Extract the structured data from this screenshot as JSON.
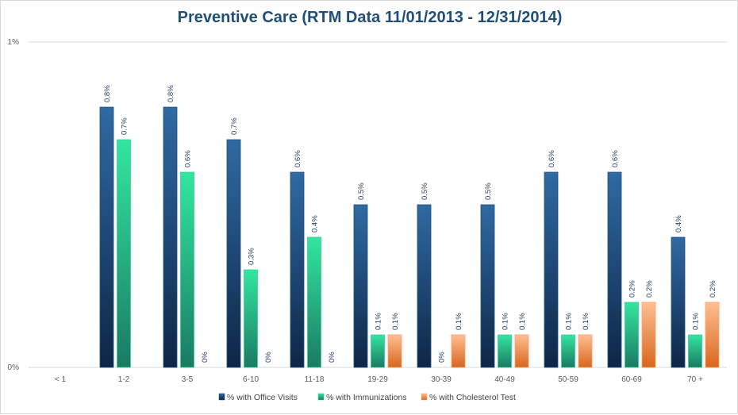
{
  "chart_data": {
    "type": "bar",
    "title": "Preventive Care (RTM Data 11/01/2013 - 12/31/2014)",
    "categories": [
      "< 1",
      "1-2",
      "3-5",
      "6-10",
      "11-18",
      "19-29",
      "30-39",
      "40-49",
      "50-59",
      "60-69",
      "70 +"
    ],
    "y_ticks": [
      "0%",
      "1%"
    ],
    "ylim": [
      0,
      1
    ],
    "grid": true,
    "legend_position": "bottom",
    "series": [
      {
        "name": "% with Office Visits",
        "color": "#1f4e79",
        "values": [
          null,
          0.8,
          0.8,
          0.7,
          0.6,
          0.5,
          0.5,
          0.5,
          0.6,
          0.6,
          0.4
        ],
        "labels": [
          "",
          "0.8%",
          "0.8%",
          "0.7%",
          "0.6%",
          "0.5%",
          "0.5%",
          "0.5%",
          "0.6%",
          "0.6%",
          "0.4%"
        ]
      },
      {
        "name": "% with Immunizations",
        "color": "#2ed48f",
        "values": [
          null,
          0.7,
          0.6,
          0.3,
          0.4,
          0.1,
          0,
          0.1,
          0.1,
          0.2,
          0.1
        ],
        "labels": [
          "",
          "0.7%",
          "0.6%",
          "0.3%",
          "0.4%",
          "0.1%",
          "0%",
          "0.1%",
          "0.1%",
          "0.2%",
          "0.1%"
        ]
      },
      {
        "name": "% with Cholesterol Test",
        "color": "#f4a36c",
        "values": [
          null,
          null,
          0,
          0,
          0,
          0.1,
          0.1,
          0.1,
          0.1,
          0.2,
          0.2
        ],
        "labels": [
          "",
          "",
          "0%",
          "0%",
          "0%",
          "0.1%",
          "0.1%",
          "0.1%",
          "0.1%",
          "0.2%",
          "0.2%"
        ]
      }
    ]
  }
}
